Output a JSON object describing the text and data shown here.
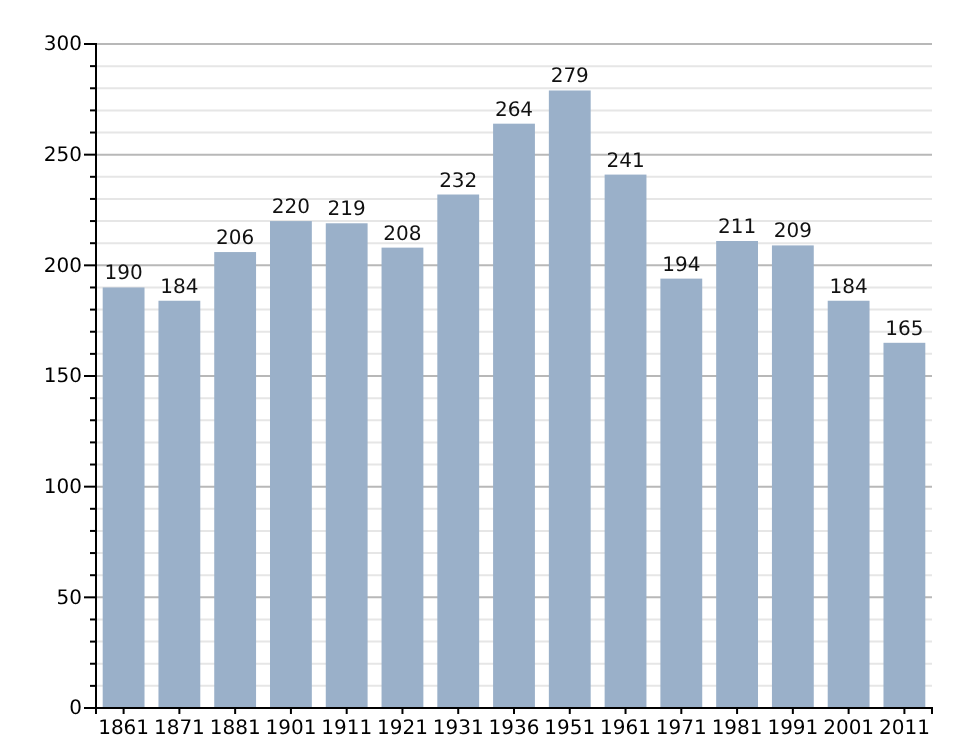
{
  "chart_data": {
    "type": "bar",
    "categories": [
      "1861",
      "1871",
      "1881",
      "1901",
      "1911",
      "1921",
      "1931",
      "1936",
      "1951",
      "1961",
      "1971",
      "1981",
      "1991",
      "2001",
      "2011"
    ],
    "values": [
      190,
      184,
      206,
      220,
      219,
      208,
      232,
      264,
      279,
      241,
      194,
      211,
      209,
      184,
      165
    ],
    "color": "#9ab0c9",
    "ylim": [
      0,
      300
    ],
    "yticks": [
      0,
      {
        "value": 10,
        "label": null
      },
      {
        "value": 20,
        "label": null
      },
      {
        "value": 30,
        "label": null
      },
      {
        "value": 40,
        "label": null
      },
      50,
      {
        "value": 60,
        "label": null
      },
      {
        "value": 70,
        "label": null
      },
      {
        "value": 80,
        "label": null
      },
      {
        "value": 90,
        "label": null
      },
      100,
      {
        "value": 110,
        "label": null
      },
      {
        "value": 120,
        "label": null
      },
      {
        "value": 130,
        "label": null
      },
      {
        "value": 140,
        "label": null
      },
      150,
      {
        "value": 160,
        "label": null
      },
      {
        "value": 170,
        "label": null
      },
      {
        "value": 180,
        "label": null
      },
      {
        "value": 190,
        "label": null
      },
      200,
      {
        "value": 210,
        "label": null
      },
      {
        "value": 220,
        "label": null
      },
      {
        "value": 230,
        "label": null
      },
      {
        "value": 240,
        "label": null
      },
      250,
      {
        "value": 260,
        "label": null
      },
      {
        "value": 270,
        "label": null
      },
      {
        "value": 280,
        "label": null
      },
      {
        "value": 290,
        "label": null
      },
      300
    ],
    "grid": "y",
    "data_labels": true
  }
}
